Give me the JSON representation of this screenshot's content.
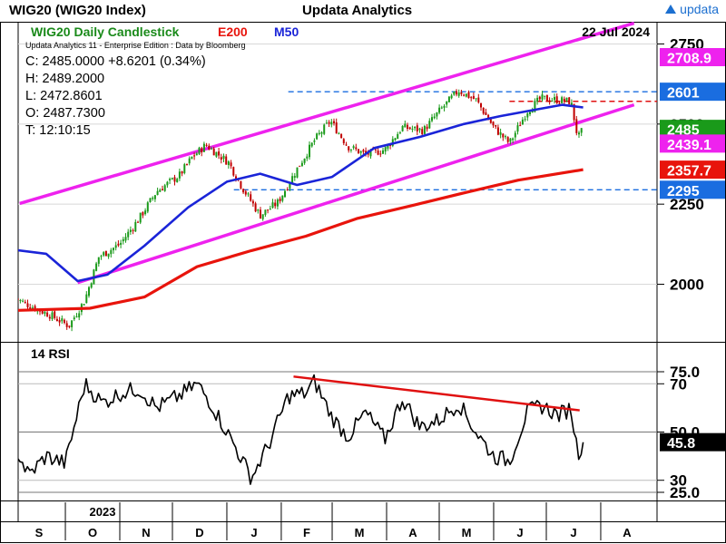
{
  "header": {
    "ticker": "WIG20 (WIG20 Index)",
    "brand": "Updata Analytics",
    "logo_text": "updata"
  },
  "colors": {
    "candle_up": "#1a9a1a",
    "candle_down": "#c00000",
    "ema200": "#e8140c",
    "ma50": "#1a24d8",
    "channel": "#ee22ee",
    "hline": "#1a6de0",
    "hline_red": "#e01010",
    "title_green": "#1a8a1a",
    "rsi_line": "#000000",
    "rsi_trend": "#e01010"
  },
  "chart_data": [
    {
      "type": "candlestick",
      "title": "WIG20 Daily Candlestick",
      "legend": [
        "E200",
        "M50"
      ],
      "date": "22 Jul 2024",
      "subtitle": "Updata Analytics 11 - Enterprise Edition : Data by Bloomberg",
      "ohlc_readout": {
        "C": "C: 2485.0000  +8.6201 (0.34%)",
        "H": "H: 2489.2000",
        "L": "L: 2472.8601",
        "O": "O: 2487.7300",
        "T": "T: 12:10:15"
      },
      "y_ticks": [
        "2750",
        "2500",
        "2250",
        "2000"
      ],
      "y_range": [
        1850,
        2790
      ],
      "price_labels": [
        {
          "text": "2708.9",
          "value": 2708.9,
          "color": "#ee22ee",
          "tcolor": "#ffffff"
        },
        {
          "text": "2601",
          "value": 2601,
          "color": "#1a6de0",
          "tcolor": "#ffffff"
        },
        {
          "text": "2485",
          "value": 2485,
          "color": "#1a9a1a",
          "tcolor": "#ffffff"
        },
        {
          "text": "2439.1",
          "value": 2439.1,
          "color": "#ee22ee",
          "tcolor": "#ffffff"
        },
        {
          "text": "2357.7",
          "value": 2357.7,
          "color": "#e8140c",
          "tcolor": "#ffffff"
        },
        {
          "text": "2295",
          "value": 2295,
          "color": "#1a6de0",
          "tcolor": "#ffffff"
        }
      ],
      "hlines": [
        {
          "value": 2601,
          "color": "blue",
          "from": "2024-02-05"
        },
        {
          "value": 2571,
          "color": "red",
          "from": "2024-06-10"
        },
        {
          "value": 2295,
          "color": "blue",
          "from": "2024-01-05"
        }
      ],
      "channel_upper": [
        {
          "x": "2023-09-05",
          "y": 2252
        },
        {
          "x": "2024-08-20",
          "y": 2815
        }
      ],
      "channel_lower": [
        {
          "x": "2023-10-08",
          "y": 2005
        },
        {
          "x": "2024-08-20",
          "y": 2560
        }
      ],
      "series": [
        {
          "name": "E200",
          "points": [
            {
              "x": "2023-09-01",
              "y": 1918
            },
            {
              "x": "2023-10-15",
              "y": 1925
            },
            {
              "x": "2023-11-15",
              "y": 1960
            },
            {
              "x": "2023-12-15",
              "y": 2055
            },
            {
              "x": "2024-01-15",
              "y": 2105
            },
            {
              "x": "2024-02-15",
              "y": 2150
            },
            {
              "x": "2024-03-15",
              "y": 2205
            },
            {
              "x": "2024-04-15",
              "y": 2245
            },
            {
              "x": "2024-05-15",
              "y": 2285
            },
            {
              "x": "2024-06-15",
              "y": 2325
            },
            {
              "x": "2024-07-22",
              "y": 2357.7
            }
          ]
        },
        {
          "name": "M50",
          "points": [
            {
              "x": "2023-09-01",
              "y": 2108
            },
            {
              "x": "2023-09-20",
              "y": 2095
            },
            {
              "x": "2023-10-08",
              "y": 2010
            },
            {
              "x": "2023-10-25",
              "y": 2030
            },
            {
              "x": "2023-11-15",
              "y": 2120
            },
            {
              "x": "2023-12-10",
              "y": 2240
            },
            {
              "x": "2024-01-01",
              "y": 2320
            },
            {
              "x": "2024-01-20",
              "y": 2345
            },
            {
              "x": "2024-02-10",
              "y": 2310
            },
            {
              "x": "2024-03-01",
              "y": 2335
            },
            {
              "x": "2024-03-25",
              "y": 2425
            },
            {
              "x": "2024-04-20",
              "y": 2460
            },
            {
              "x": "2024-05-15",
              "y": 2500
            },
            {
              "x": "2024-06-05",
              "y": 2525
            },
            {
              "x": "2024-06-25",
              "y": 2545
            },
            {
              "x": "2024-07-10",
              "y": 2560
            },
            {
              "x": "2024-07-22",
              "y": 2552
            }
          ]
        },
        {
          "name": "close",
          "points": [
            {
              "x": "2023-09-01",
              "y": 1960
            },
            {
              "x": "2023-09-12",
              "y": 1930
            },
            {
              "x": "2023-09-22",
              "y": 1905
            },
            {
              "x": "2023-10-03",
              "y": 1870
            },
            {
              "x": "2023-10-12",
              "y": 1950
            },
            {
              "x": "2023-10-20",
              "y": 2085
            },
            {
              "x": "2023-11-01",
              "y": 2125
            },
            {
              "x": "2023-11-12",
              "y": 2205
            },
            {
              "x": "2023-11-22",
              "y": 2290
            },
            {
              "x": "2023-12-05",
              "y": 2340
            },
            {
              "x": "2023-12-12",
              "y": 2395
            },
            {
              "x": "2023-12-20",
              "y": 2435
            },
            {
              "x": "2024-01-02",
              "y": 2380
            },
            {
              "x": "2024-01-10",
              "y": 2300
            },
            {
              "x": "2024-01-20",
              "y": 2215
            },
            {
              "x": "2024-01-30",
              "y": 2255
            },
            {
              "x": "2024-02-10",
              "y": 2360
            },
            {
              "x": "2024-02-20",
              "y": 2450
            },
            {
              "x": "2024-02-29",
              "y": 2510
            },
            {
              "x": "2024-03-10",
              "y": 2430
            },
            {
              "x": "2024-03-20",
              "y": 2405
            },
            {
              "x": "2024-03-31",
              "y": 2420
            },
            {
              "x": "2024-04-10",
              "y": 2490
            },
            {
              "x": "2024-04-22",
              "y": 2480
            },
            {
              "x": "2024-05-01",
              "y": 2540
            },
            {
              "x": "2024-05-12",
              "y": 2605
            },
            {
              "x": "2024-05-22",
              "y": 2575
            },
            {
              "x": "2024-06-01",
              "y": 2490
            },
            {
              "x": "2024-06-10",
              "y": 2440
            },
            {
              "x": "2024-06-20",
              "y": 2540
            },
            {
              "x": "2024-06-28",
              "y": 2580
            },
            {
              "x": "2024-07-08",
              "y": 2575
            },
            {
              "x": "2024-07-15",
              "y": 2570
            },
            {
              "x": "2024-07-19",
              "y": 2455
            },
            {
              "x": "2024-07-22",
              "y": 2485
            }
          ]
        }
      ]
    },
    {
      "type": "line",
      "title": "14 RSI",
      "y_ticks": [
        "75.0",
        "70",
        "50.0",
        "30",
        "25.0"
      ],
      "y_range": [
        15,
        88
      ],
      "value_label": "45.8",
      "trendline": [
        {
          "x": "2024-02-08",
          "y": 73
        },
        {
          "x": "2024-07-20",
          "y": 59
        }
      ],
      "series": [
        {
          "name": "RSI",
          "points": [
            {
              "x": "2023-09-01",
              "y": 46
            },
            {
              "x": "2023-09-10",
              "y": 32
            },
            {
              "x": "2023-09-20",
              "y": 40
            },
            {
              "x": "2023-10-01",
              "y": 37
            },
            {
              "x": "2023-10-12",
              "y": 70
            },
            {
              "x": "2023-10-22",
              "y": 62
            },
            {
              "x": "2023-11-01",
              "y": 66
            },
            {
              "x": "2023-11-12",
              "y": 68
            },
            {
              "x": "2023-11-22",
              "y": 60
            },
            {
              "x": "2023-12-05",
              "y": 65
            },
            {
              "x": "2023-12-15",
              "y": 70
            },
            {
              "x": "2023-12-22",
              "y": 63
            },
            {
              "x": "2024-01-05",
              "y": 45
            },
            {
              "x": "2024-01-15",
              "y": 31
            },
            {
              "x": "2024-01-25",
              "y": 45
            },
            {
              "x": "2024-02-05",
              "y": 65
            },
            {
              "x": "2024-02-15",
              "y": 66
            },
            {
              "x": "2024-02-20",
              "y": 71
            },
            {
              "x": "2024-03-01",
              "y": 56
            },
            {
              "x": "2024-03-10",
              "y": 48
            },
            {
              "x": "2024-03-20",
              "y": 58
            },
            {
              "x": "2024-03-31",
              "y": 47
            },
            {
              "x": "2024-04-10",
              "y": 64
            },
            {
              "x": "2024-04-20",
              "y": 52
            },
            {
              "x": "2024-05-01",
              "y": 55
            },
            {
              "x": "2024-05-12",
              "y": 62
            },
            {
              "x": "2024-05-22",
              "y": 50
            },
            {
              "x": "2024-06-01",
              "y": 40
            },
            {
              "x": "2024-06-10",
              "y": 38
            },
            {
              "x": "2024-06-20",
              "y": 58
            },
            {
              "x": "2024-06-28",
              "y": 61
            },
            {
              "x": "2024-07-08",
              "y": 57
            },
            {
              "x": "2024-07-15",
              "y": 60
            },
            {
              "x": "2024-07-19",
              "y": 41
            },
            {
              "x": "2024-07-22",
              "y": 45.8
            }
          ]
        }
      ]
    }
  ],
  "x_axis": {
    "year_label": "2023",
    "months": [
      "S",
      "O",
      "N",
      "D",
      "J",
      "F",
      "M",
      "A",
      "M",
      "J",
      "J",
      "A"
    ],
    "month_starts": [
      "2023-09-01",
      "2023-10-01",
      "2023-11-01",
      "2023-12-01",
      "2024-01-01",
      "2024-02-01",
      "2024-03-01",
      "2024-04-01",
      "2024-05-01",
      "2024-06-01",
      "2024-07-01",
      "2024-08-01"
    ]
  }
}
